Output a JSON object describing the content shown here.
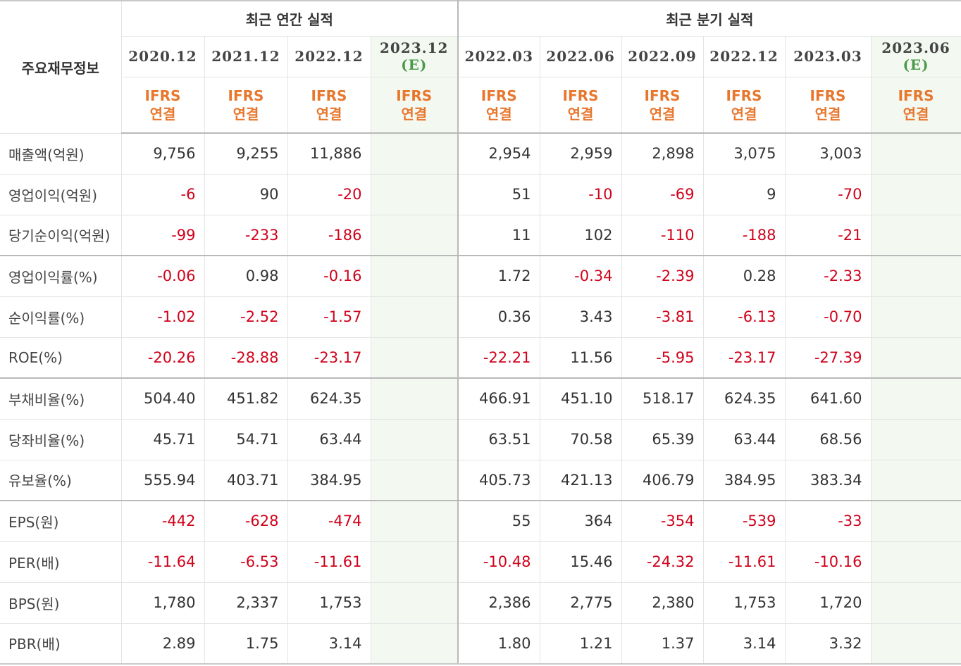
{
  "header": {
    "corner": "주요재무정보",
    "annual_title": "최근 연간 실적",
    "quarter_title": "최근 분기 실적",
    "annual_periods": [
      {
        "label": "2020.12",
        "est": ""
      },
      {
        "label": "2021.12",
        "est": ""
      },
      {
        "label": "2022.12",
        "est": ""
      },
      {
        "label": "2023.12",
        "est": "(E)"
      }
    ],
    "quarter_periods": [
      {
        "label": "2022.03",
        "est": ""
      },
      {
        "label": "2022.06",
        "est": ""
      },
      {
        "label": "2022.09",
        "est": ""
      },
      {
        "label": "2022.12",
        "est": ""
      },
      {
        "label": "2023.03",
        "est": ""
      },
      {
        "label": "2023.06",
        "est": "(E)"
      }
    ],
    "ifrs_line1": "IFRS",
    "ifrs_line2": "연결"
  },
  "rows": [
    {
      "label": "매출액(억원)",
      "annual": [
        "9,756",
        "9,255",
        "11,886",
        ""
      ],
      "quarter": [
        "2,954",
        "2,959",
        "2,898",
        "3,075",
        "3,003",
        ""
      ]
    },
    {
      "label": "영업이익(억원)",
      "annual": [
        "-6",
        "90",
        "-20",
        ""
      ],
      "quarter": [
        "51",
        "-10",
        "-69",
        "9",
        "-70",
        ""
      ]
    },
    {
      "label": "당기순이익(억원)",
      "annual": [
        "-99",
        "-233",
        "-186",
        ""
      ],
      "quarter": [
        "11",
        "102",
        "-110",
        "-188",
        "-21",
        ""
      ]
    },
    {
      "label": "영업이익률(%)",
      "annual": [
        "-0.06",
        "0.98",
        "-0.16",
        ""
      ],
      "quarter": [
        "1.72",
        "-0.34",
        "-2.39",
        "0.28",
        "-2.33",
        ""
      ]
    },
    {
      "label": "순이익률(%)",
      "annual": [
        "-1.02",
        "-2.52",
        "-1.57",
        ""
      ],
      "quarter": [
        "0.36",
        "3.43",
        "-3.81",
        "-6.13",
        "-0.70",
        ""
      ]
    },
    {
      "label": "ROE(%)",
      "annual": [
        "-20.26",
        "-28.88",
        "-23.17",
        ""
      ],
      "quarter": [
        "-22.21",
        "11.56",
        "-5.95",
        "-23.17",
        "-27.39",
        ""
      ]
    },
    {
      "label": "부채비율(%)",
      "annual": [
        "504.40",
        "451.82",
        "624.35",
        ""
      ],
      "quarter": [
        "466.91",
        "451.10",
        "518.17",
        "624.35",
        "641.60",
        ""
      ]
    },
    {
      "label": "당좌비율(%)",
      "annual": [
        "45.71",
        "54.71",
        "63.44",
        ""
      ],
      "quarter": [
        "63.51",
        "70.58",
        "65.39",
        "63.44",
        "68.56",
        ""
      ]
    },
    {
      "label": "유보율(%)",
      "annual": [
        "555.94",
        "403.71",
        "384.95",
        ""
      ],
      "quarter": [
        "405.73",
        "421.13",
        "406.79",
        "384.95",
        "383.34",
        ""
      ]
    },
    {
      "label": "EPS(원)",
      "annual": [
        "-442",
        "-628",
        "-474",
        ""
      ],
      "quarter": [
        "55",
        "364",
        "-354",
        "-539",
        "-33",
        ""
      ]
    },
    {
      "label": "PER(배)",
      "annual": [
        "-11.64",
        "-6.53",
        "-11.61",
        ""
      ],
      "quarter": [
        "-10.48",
        "15.46",
        "-24.32",
        "-11.61",
        "-10.16",
        ""
      ]
    },
    {
      "label": "BPS(원)",
      "annual": [
        "1,780",
        "2,337",
        "1,753",
        ""
      ],
      "quarter": [
        "2,386",
        "2,775",
        "2,380",
        "1,753",
        "1,720",
        ""
      ]
    },
    {
      "label": "PBR(배)",
      "annual": [
        "2.89",
        "1.75",
        "3.14",
        ""
      ],
      "quarter": [
        "1.80",
        "1.21",
        "1.37",
        "3.14",
        "3.32",
        ""
      ]
    }
  ]
}
